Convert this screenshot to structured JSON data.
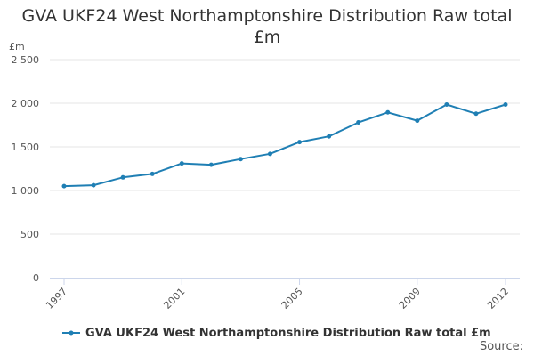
{
  "chart_data": {
    "type": "line",
    "title": "GVA UKF24 West Northamptonshire Distribution Raw total £m",
    "unit_label": "£m",
    "xlabel": "",
    "ylabel": "",
    "x": [
      1997,
      1998,
      1999,
      2000,
      2001,
      2002,
      2003,
      2004,
      2005,
      2006,
      2007,
      2008,
      2009,
      2010,
      2011,
      2012
    ],
    "x_tick_labels": [
      "1997",
      "2001",
      "2005",
      "2009",
      "2012"
    ],
    "x_tick_values": [
      1997,
      2001,
      2005,
      2009,
      2012
    ],
    "y_tick_labels": [
      "0",
      "500",
      "1 000",
      "1 500",
      "2 000",
      "2 500"
    ],
    "y_tick_values": [
      0,
      500,
      1000,
      1500,
      2000,
      2500
    ],
    "xlim": [
      1997,
      2012
    ],
    "ylim": [
      0,
      2500
    ],
    "grid": true,
    "legend_position": "bottom-left",
    "series": [
      {
        "name": "GVA UKF24 West Northamptonshire Distribution Raw total £m",
        "color": "#1f7fb4",
        "values": [
          1050,
          1060,
          1150,
          1190,
          1310,
          1295,
          1360,
          1420,
          1555,
          1620,
          1780,
          1895,
          1800,
          1985,
          1880,
          1985
        ]
      }
    ]
  },
  "source_label": "Source:"
}
